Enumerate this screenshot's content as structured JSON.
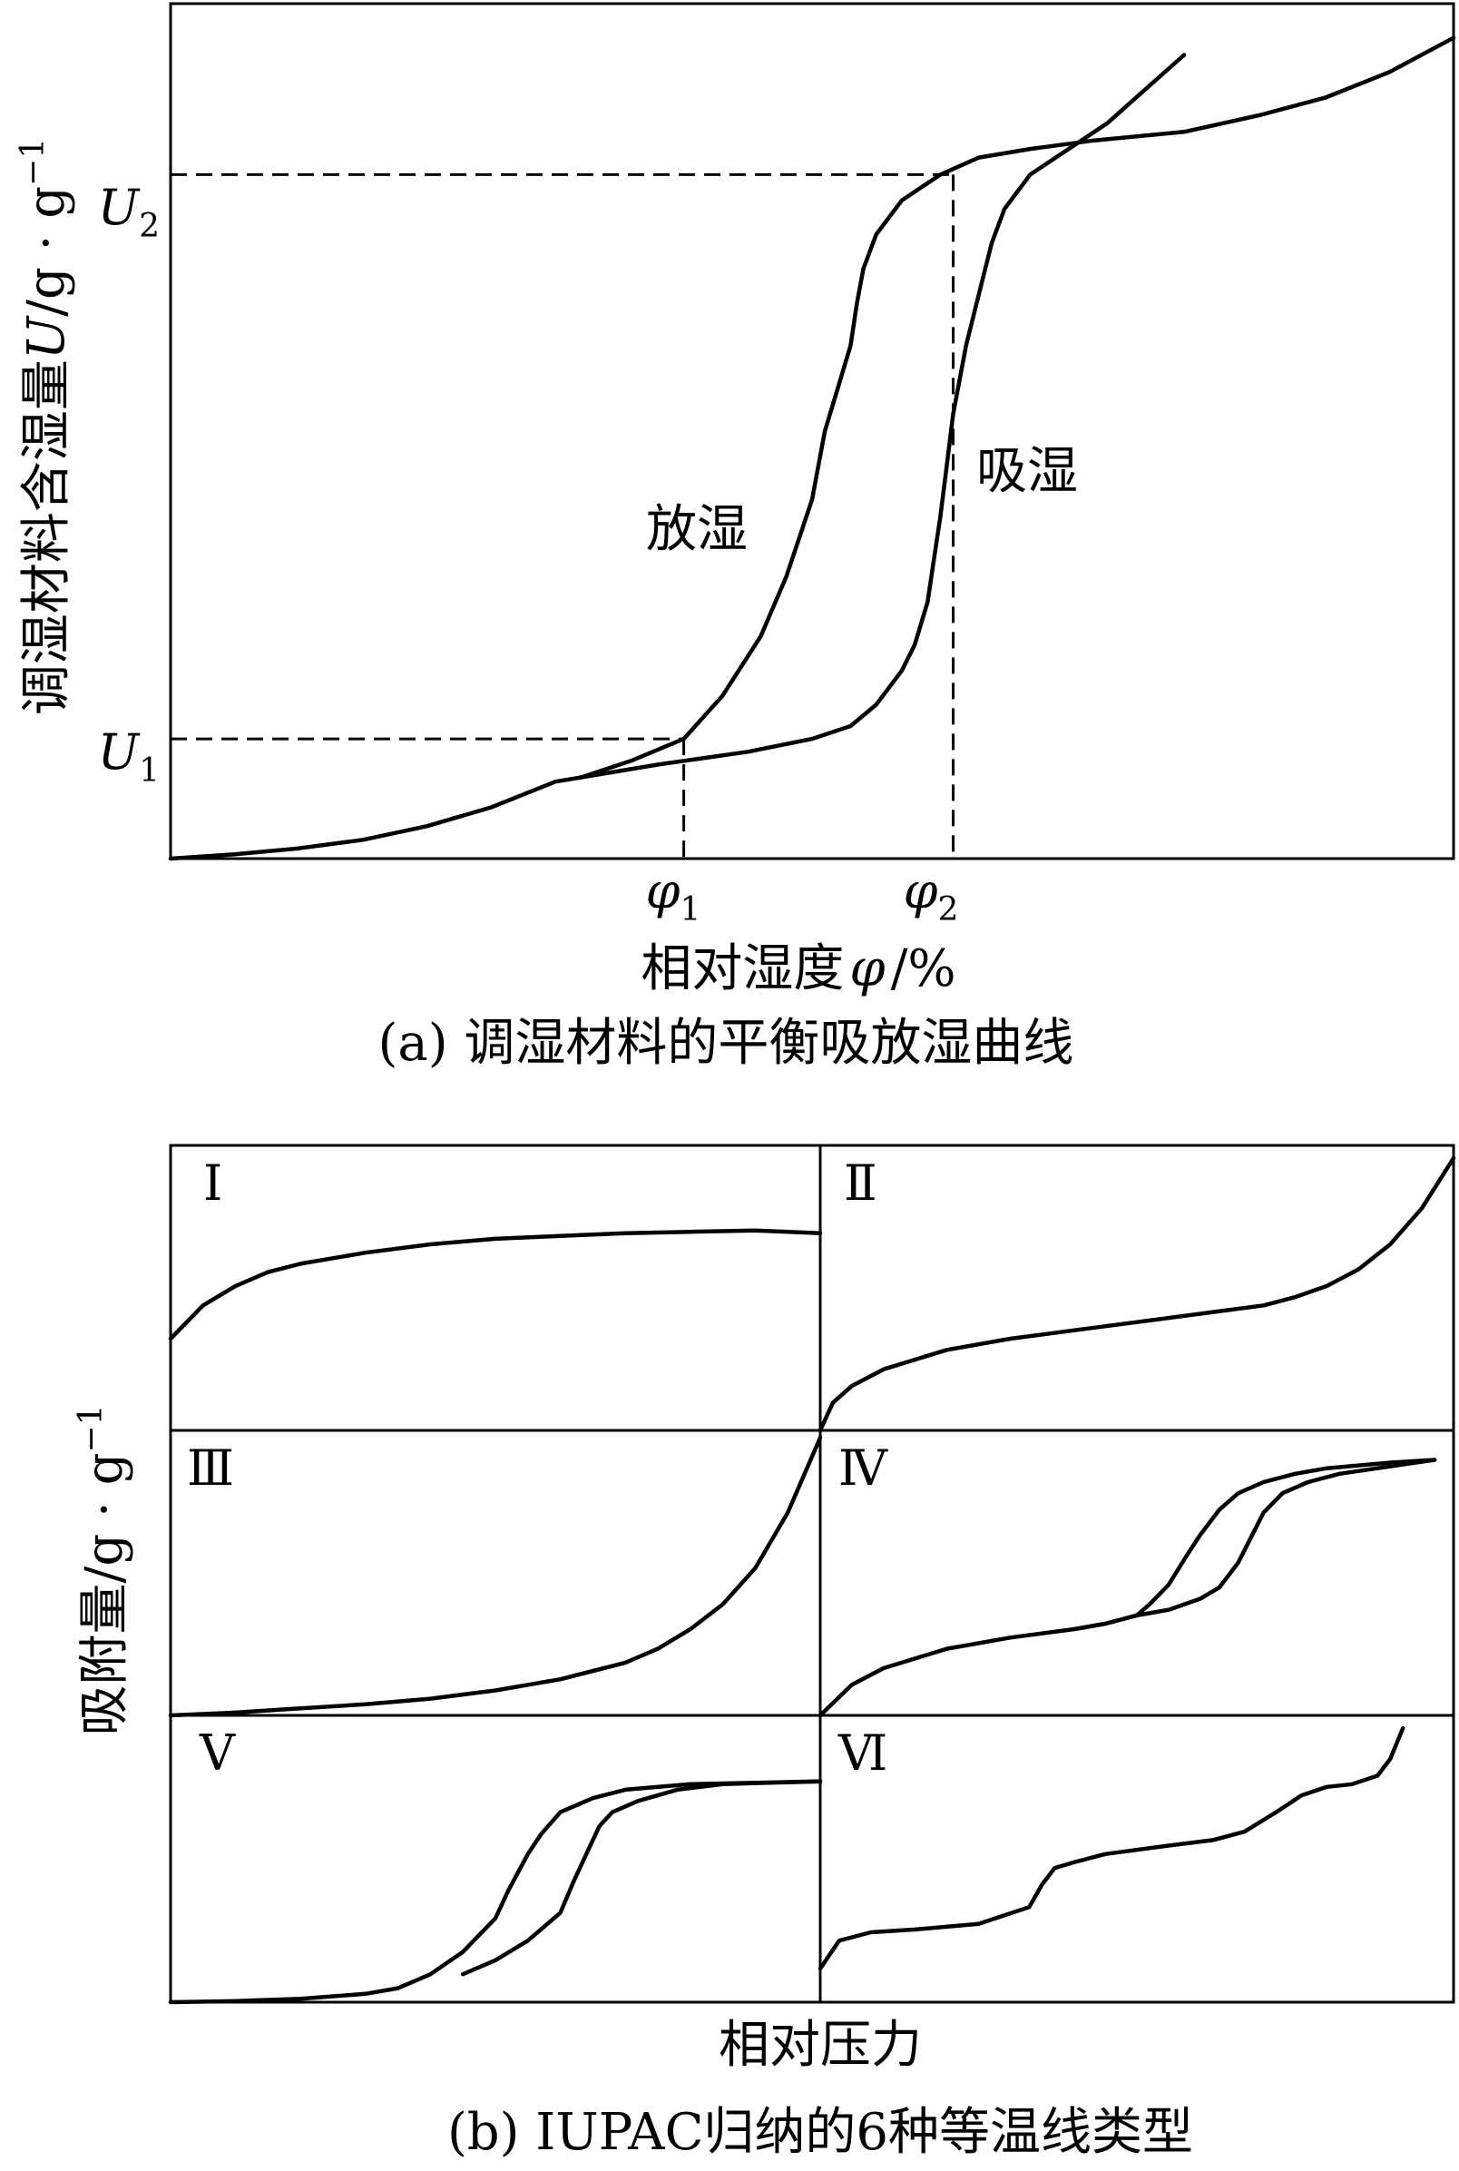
{
  "chart_data": [
    {
      "type": "line",
      "panel": "a",
      "caption": "(a) 调湿材料的平衡吸放湿曲线",
      "xlabel": "相对湿度",
      "xlabel_symbol": "φ",
      "xlabel_unit": "/%",
      "ylabel": "调湿材料含湿量",
      "ylabel_symbol": "U",
      "ylabel_unit": "/g · g",
      "ylabel_exp": "−1",
      "yticks": [
        {
          "symbol": "U",
          "sub": "1",
          "value": 0.14
        },
        {
          "symbol": "U",
          "sub": "2",
          "value": 0.8
        }
      ],
      "xticks": [
        {
          "symbol": "φ",
          "sub": "1",
          "value": 0.4
        },
        {
          "symbol": "φ",
          "sub": "2",
          "value": 0.61
        }
      ],
      "xlim": [
        0,
        1
      ],
      "ylim": [
        0,
        1
      ],
      "series": [
        {
          "name": "吸湿",
          "x": [
            0.0,
            0.05,
            0.1,
            0.15,
            0.2,
            0.25,
            0.3,
            0.32,
            0.38,
            0.45,
            0.5,
            0.53,
            0.55,
            0.57,
            0.58,
            0.59,
            0.595,
            0.6,
            0.605,
            0.61,
            0.615,
            0.62,
            0.63,
            0.64,
            0.65,
            0.67,
            0.7,
            0.73,
            0.76,
            0.79
          ],
          "y": [
            0.0,
            0.005,
            0.012,
            0.022,
            0.038,
            0.06,
            0.09,
            0.095,
            0.11,
            0.125,
            0.14,
            0.155,
            0.18,
            0.22,
            0.25,
            0.3,
            0.35,
            0.4,
            0.46,
            0.52,
            0.56,
            0.6,
            0.66,
            0.72,
            0.76,
            0.8,
            0.83,
            0.86,
            0.9,
            0.94
          ]
        },
        {
          "name": "放湿",
          "x": [
            0.32,
            0.36,
            0.4,
            0.43,
            0.46,
            0.48,
            0.5,
            0.51,
            0.52,
            0.53,
            0.535,
            0.54,
            0.55,
            0.57,
            0.6,
            0.63,
            0.67,
            0.72,
            0.79,
            0.85,
            0.9,
            0.95,
            1.0
          ],
          "y": [
            0.095,
            0.115,
            0.14,
            0.19,
            0.26,
            0.33,
            0.42,
            0.5,
            0.55,
            0.6,
            0.65,
            0.69,
            0.73,
            0.77,
            0.8,
            0.82,
            0.83,
            0.84,
            0.85,
            0.87,
            0.89,
            0.92,
            0.96
          ]
        }
      ]
    },
    {
      "type": "line",
      "panel": "b",
      "caption": "(b) IUPAC归纳的6种等温线类型",
      "xlabel": "相对压力",
      "ylabel": "吸附量/g · g",
      "ylabel_exp": "−1",
      "panels": [
        {
          "label": "Ⅰ",
          "series": [
            {
              "x": [
                0,
                0.05,
                0.1,
                0.15,
                0.2,
                0.3,
                0.4,
                0.5,
                0.6,
                0.7,
                0.8,
                0.9,
                1.0
              ],
              "y": [
                0.33,
                0.45,
                0.52,
                0.57,
                0.6,
                0.64,
                0.67,
                0.69,
                0.7,
                0.71,
                0.715,
                0.72,
                0.71
              ]
            }
          ]
        },
        {
          "label": "Ⅱ",
          "series": [
            {
              "x": [
                0,
                0.02,
                0.05,
                0.1,
                0.2,
                0.3,
                0.4,
                0.5,
                0.6,
                0.7,
                0.75,
                0.8,
                0.85,
                0.9,
                0.95,
                1.0
              ],
              "y": [
                0.0,
                0.1,
                0.16,
                0.22,
                0.29,
                0.33,
                0.36,
                0.39,
                0.42,
                0.45,
                0.48,
                0.52,
                0.58,
                0.67,
                0.8,
                0.98
              ]
            }
          ]
        },
        {
          "label": "Ⅲ",
          "series": [
            {
              "x": [
                0,
                0.1,
                0.2,
                0.3,
                0.4,
                0.5,
                0.6,
                0.7,
                0.75,
                0.8,
                0.85,
                0.9,
                0.95,
                1.0
              ],
              "y": [
                0.0,
                0.01,
                0.025,
                0.04,
                0.06,
                0.09,
                0.13,
                0.19,
                0.24,
                0.31,
                0.4,
                0.53,
                0.73,
                1.0
              ]
            }
          ]
        },
        {
          "label": "Ⅳ",
          "series": [
            {
              "x": [
                0,
                0.05,
                0.1,
                0.2,
                0.3,
                0.4,
                0.45,
                0.5,
                0.52,
                0.55,
                0.58,
                0.6,
                0.63,
                0.66,
                0.7,
                0.75,
                0.8,
                0.9,
                0.97
              ],
              "y": [
                0.0,
                0.11,
                0.17,
                0.24,
                0.28,
                0.31,
                0.33,
                0.36,
                0.4,
                0.47,
                0.58,
                0.65,
                0.74,
                0.8,
                0.84,
                0.87,
                0.89,
                0.91,
                0.92
              ]
            },
            {
              "x": [
                0.4,
                0.45,
                0.5,
                0.55,
                0.6,
                0.63,
                0.66,
                0.68,
                0.7,
                0.73,
                0.77,
                0.82,
                0.88,
                0.94,
                0.97
              ],
              "y": [
                0.31,
                0.33,
                0.36,
                0.38,
                0.42,
                0.46,
                0.55,
                0.64,
                0.73,
                0.8,
                0.84,
                0.87,
                0.89,
                0.91,
                0.92
              ]
            }
          ]
        },
        {
          "label": "Ⅴ",
          "series": [
            {
              "x": [
                0,
                0.1,
                0.2,
                0.3,
                0.35,
                0.4,
                0.45,
                0.5,
                0.52,
                0.55,
                0.57,
                0.6,
                0.65,
                0.7,
                0.8,
                0.9,
                1.0
              ],
              "y": [
                0.0,
                0.004,
                0.012,
                0.03,
                0.05,
                0.1,
                0.18,
                0.3,
                0.4,
                0.53,
                0.6,
                0.68,
                0.73,
                0.76,
                0.78,
                0.785,
                0.79
              ]
            },
            {
              "x": [
                0.45,
                0.5,
                0.55,
                0.6,
                0.62,
                0.64,
                0.66,
                0.68,
                0.72,
                0.78,
                0.85,
                0.92,
                1.0
              ],
              "y": [
                0.1,
                0.15,
                0.22,
                0.32,
                0.43,
                0.53,
                0.63,
                0.68,
                0.72,
                0.76,
                0.78,
                0.785,
                0.79
              ]
            }
          ]
        },
        {
          "label": "Ⅵ",
          "series": [
            {
              "x": [
                0,
                0.03,
                0.08,
                0.15,
                0.25,
                0.33,
                0.35,
                0.37,
                0.4,
                0.45,
                0.55,
                0.62,
                0.67,
                0.72,
                0.76,
                0.8,
                0.84,
                0.88,
                0.9,
                0.92
              ],
              "y": [
                0.12,
                0.22,
                0.25,
                0.26,
                0.28,
                0.34,
                0.42,
                0.48,
                0.5,
                0.53,
                0.56,
                0.58,
                0.61,
                0.68,
                0.74,
                0.77,
                0.78,
                0.81,
                0.87,
                0.98
              ]
            }
          ]
        }
      ]
    }
  ],
  "labels": {
    "desorption": "放湿",
    "adsorption": "吸湿"
  }
}
